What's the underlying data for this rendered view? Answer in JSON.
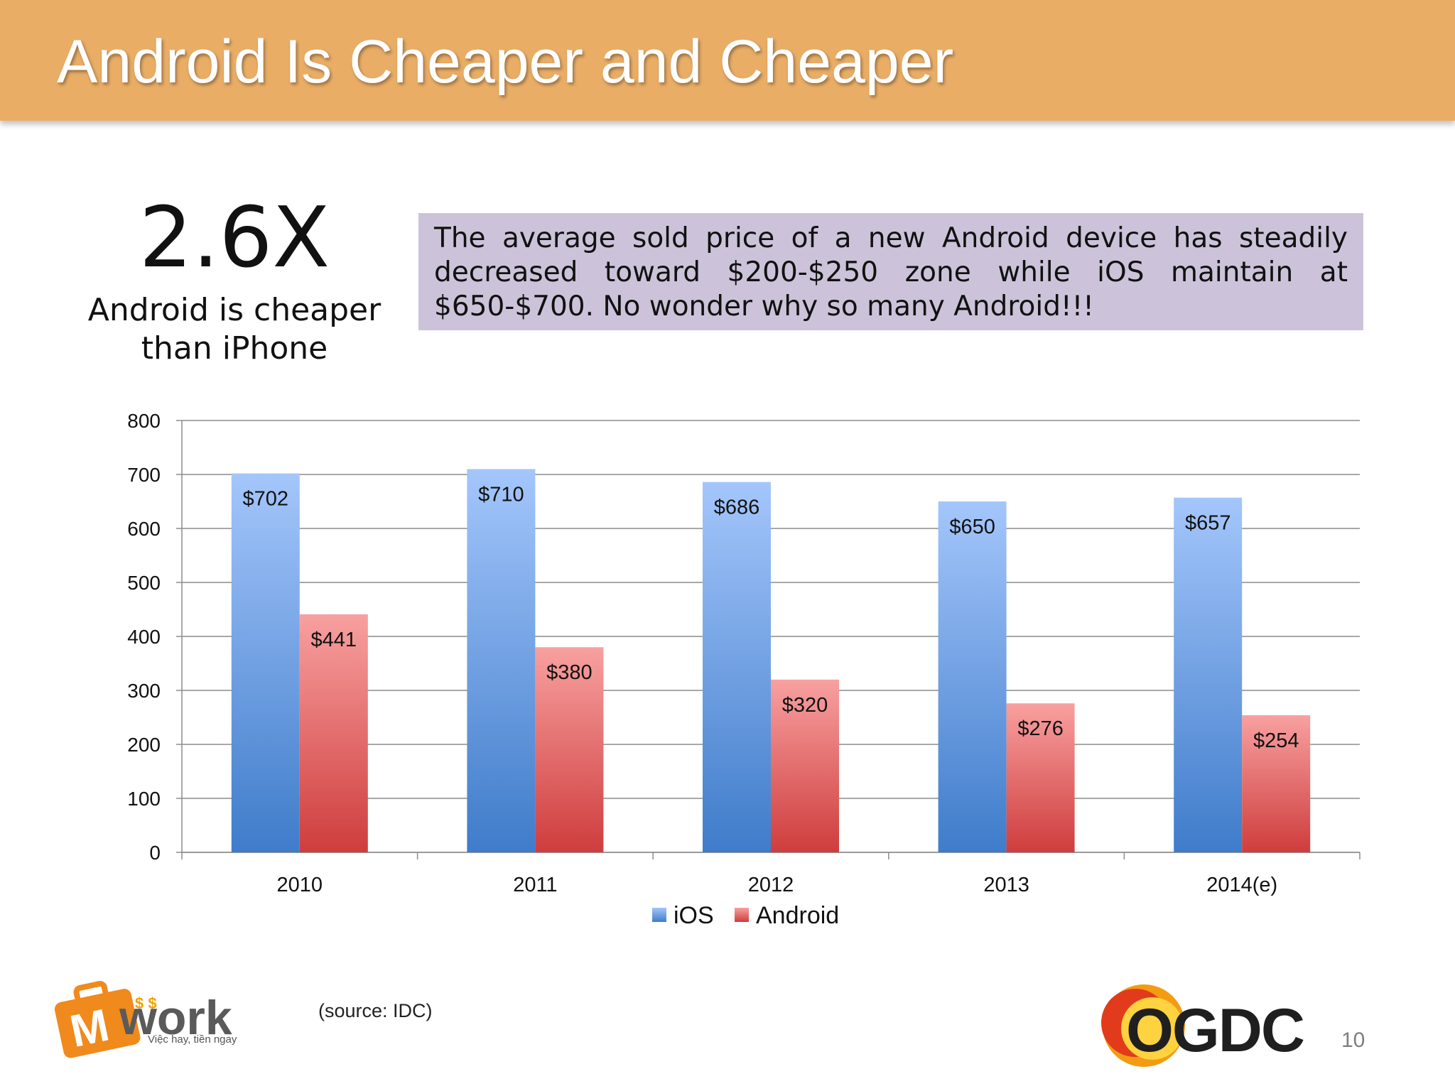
{
  "slide": {
    "title": "Android Is Cheaper and Cheaper",
    "stat_value": "2.6X",
    "stat_caption": "Android is cheaper than iPhone",
    "note": "The average sold price of a new Android device has steadily decreased toward $200-$250 zone while iOS maintain at $650-$700. No wonder why so many Android!!!",
    "source": "(source: IDC)",
    "page_number": "10"
  },
  "logos": {
    "left_brand": "Mwork",
    "left_tagline": "Việc hay, tiền ngay",
    "right_brand": "OGDC"
  },
  "colors": {
    "title_bar": "#e9ad66",
    "note_box": "#ccc3da",
    "ios_top": "#a4c6fb",
    "ios_bottom": "#3f7cca",
    "android_top": "#f8a0a0",
    "android_bottom": "#cf3d3d"
  },
  "chart_data": {
    "type": "bar",
    "categories": [
      "2010",
      "2011",
      "2012",
      "2013",
      "2014(e)"
    ],
    "series": [
      {
        "name": "iOS",
        "values": [
          702,
          710,
          686,
          650,
          657
        ],
        "labels": [
          "$702",
          "$710",
          "$686",
          "$650",
          "$657"
        ]
      },
      {
        "name": "Android",
        "values": [
          441,
          380,
          320,
          276,
          254
        ],
        "labels": [
          "$441",
          "$380",
          "$320",
          "$276",
          "$254"
        ]
      }
    ],
    "ylim": [
      0,
      800
    ],
    "yticks": [
      0,
      100,
      200,
      300,
      400,
      500,
      600,
      700,
      800
    ],
    "grid": true,
    "legend": "bottom-center"
  }
}
